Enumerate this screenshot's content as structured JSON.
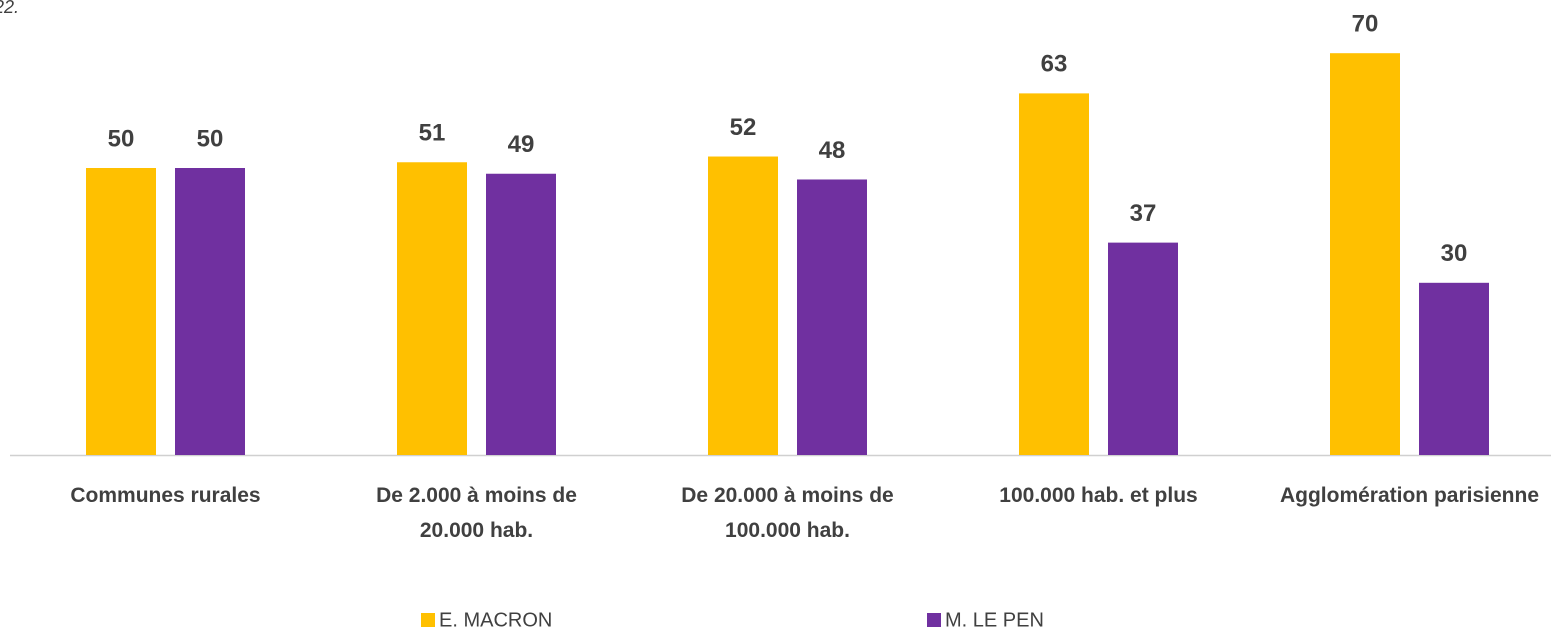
{
  "chart_data": {
    "type": "bar",
    "note": "22.",
    "categories": [
      "Communes rurales",
      "De 2.000 à moins de 20.000 hab.",
      "De 20.000 à moins de 100.000 hab.",
      "100.000 hab. et plus",
      "Agglomération parisienne"
    ],
    "series": [
      {
        "name": "E. MACRON",
        "color": "#FFC000",
        "values": [
          50,
          51,
          52,
          63,
          70
        ]
      },
      {
        "name": "M. LE PEN",
        "color": "#7030A0",
        "values": [
          50,
          49,
          48,
          37,
          30
        ]
      }
    ]
  }
}
